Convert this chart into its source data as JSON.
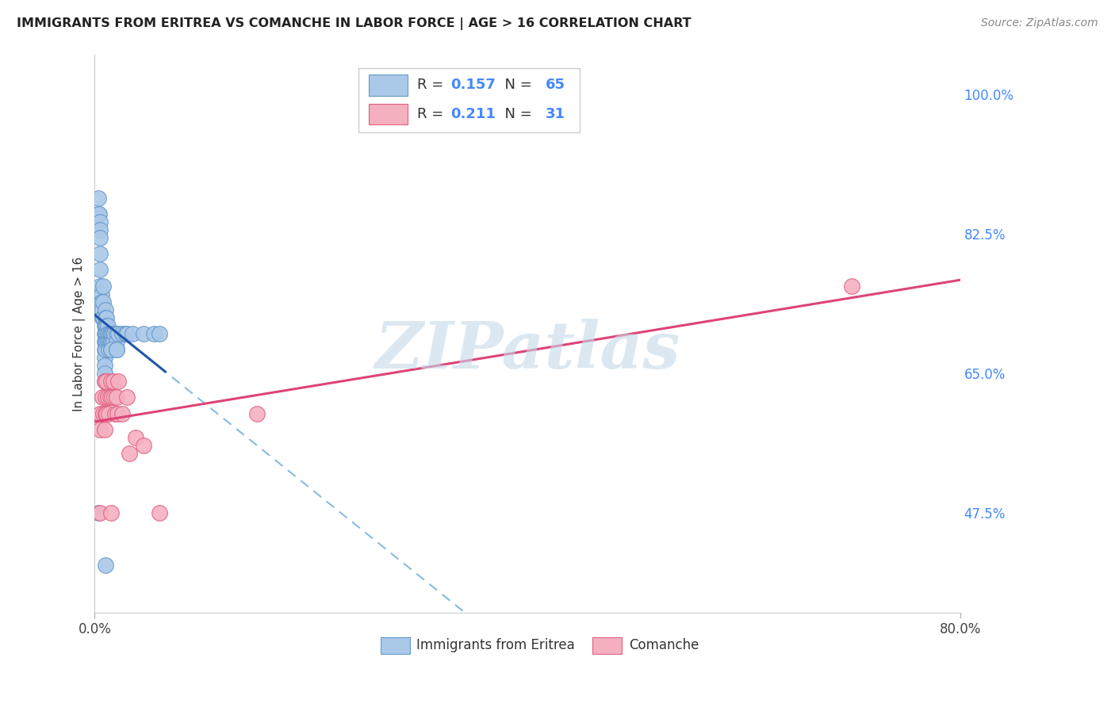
{
  "title": "IMMIGRANTS FROM ERITREA VS COMANCHE IN LABOR FORCE | AGE > 16 CORRELATION CHART",
  "source": "Source: ZipAtlas.com",
  "ylabel": "In Labor Force | Age > 16",
  "xlim": [
    0.0,
    0.8
  ],
  "ylim": [
    0.35,
    1.05
  ],
  "yticks": [
    0.475,
    0.65,
    0.825,
    1.0
  ],
  "ytick_labels": [
    "47.5%",
    "65.0%",
    "82.5%",
    "100.0%"
  ],
  "xtick_labels": [
    "0.0%",
    "80.0%"
  ],
  "xticks": [
    0.0,
    0.8
  ],
  "background_color": "#ffffff",
  "grid_color": "#d8d8d8",
  "eritrea_color": "#aac8e8",
  "eritrea_edge_color": "#6699cc",
  "comanche_color": "#f5b0c0",
  "comanche_edge_color": "#e06080",
  "eritrea_line_color": "#2255aa",
  "comanche_line_color": "#dd4477",
  "dashed_line_color": "#88bbdd",
  "legend_R_eritrea": "0.157",
  "legend_N_eritrea": "65",
  "legend_R_comanche": "0.211",
  "legend_N_comanche": "31",
  "watermark": "ZIPatlas",
  "eritrea_x": [
    0.003,
    0.003,
    0.004,
    0.005,
    0.005,
    0.005,
    0.005,
    0.005,
    0.005,
    0.006,
    0.006,
    0.007,
    0.007,
    0.008,
    0.008,
    0.008,
    0.009,
    0.009,
    0.009,
    0.009,
    0.009,
    0.009,
    0.009,
    0.009,
    0.01,
    0.01,
    0.01,
    0.01,
    0.01,
    0.01,
    0.011,
    0.011,
    0.011,
    0.011,
    0.012,
    0.012,
    0.012,
    0.013,
    0.013,
    0.013,
    0.014,
    0.014,
    0.015,
    0.015,
    0.015,
    0.016,
    0.016,
    0.017,
    0.017,
    0.018,
    0.02,
    0.02,
    0.022,
    0.025,
    0.028,
    0.03,
    0.035,
    0.045,
    0.055,
    0.06,
    0.003,
    0.01,
    0.015,
    0.02,
    0.02
  ],
  "eritrea_y": [
    0.85,
    0.87,
    0.85,
    0.84,
    0.83,
    0.82,
    0.8,
    0.78,
    0.76,
    0.75,
    0.74,
    0.73,
    0.72,
    0.76,
    0.74,
    0.72,
    0.71,
    0.7,
    0.69,
    0.68,
    0.67,
    0.66,
    0.65,
    0.64,
    0.73,
    0.72,
    0.71,
    0.7,
    0.69,
    0.68,
    0.72,
    0.71,
    0.7,
    0.69,
    0.71,
    0.7,
    0.69,
    0.7,
    0.69,
    0.68,
    0.7,
    0.69,
    0.7,
    0.69,
    0.68,
    0.7,
    0.69,
    0.7,
    0.69,
    0.7,
    0.7,
    0.69,
    0.7,
    0.7,
    0.7,
    0.7,
    0.7,
    0.7,
    0.7,
    0.7,
    0.475,
    0.41,
    0.68,
    0.68,
    0.68
  ],
  "comanche_x": [
    0.005,
    0.005,
    0.005,
    0.007,
    0.008,
    0.009,
    0.009,
    0.01,
    0.01,
    0.011,
    0.011,
    0.012,
    0.013,
    0.014,
    0.015,
    0.015,
    0.016,
    0.017,
    0.018,
    0.019,
    0.02,
    0.021,
    0.022,
    0.025,
    0.03,
    0.032,
    0.038,
    0.045,
    0.06,
    0.15,
    0.7
  ],
  "comanche_y": [
    0.6,
    0.58,
    0.475,
    0.62,
    0.6,
    0.64,
    0.58,
    0.62,
    0.6,
    0.64,
    0.6,
    0.62,
    0.6,
    0.62,
    0.64,
    0.475,
    0.62,
    0.64,
    0.62,
    0.6,
    0.62,
    0.6,
    0.64,
    0.6,
    0.62,
    0.55,
    0.57,
    0.56,
    0.475,
    0.6,
    0.76
  ]
}
